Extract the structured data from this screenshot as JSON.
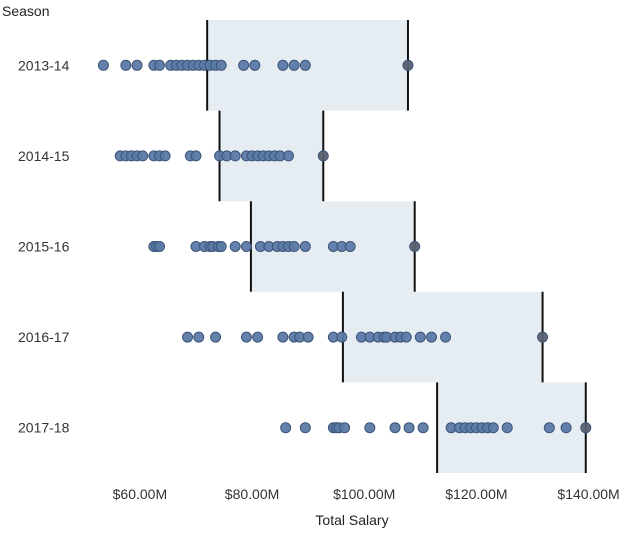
{
  "chart_data": {
    "type": "scatter",
    "title": "",
    "xlabel": "Total Salary",
    "ylabel": "Season",
    "x_unit": "M",
    "xlim": [
      52,
      144
    ],
    "x_ticks": [
      60,
      80,
      100,
      120,
      140
    ],
    "x_tick_labels": [
      "$60.00M",
      "$80.00M",
      "$100.00M",
      "$120.00M",
      "$140.00M"
    ],
    "grid": false,
    "colors": {
      "point_fill": "#5b7aa6",
      "point_stroke": "#3c5479",
      "max_point_fill": "#5a6070",
      "band_fill": "#e6edf2",
      "reference_line": "#111111"
    },
    "categories": [
      "2013-14",
      "2014-15",
      "2015-16",
      "2016-17",
      "2017-18"
    ],
    "series": [
      {
        "category": "2013-14",
        "band": [
          72.0,
          107.8
        ],
        "points": [
          53.5,
          57.5,
          59.5,
          62.5,
          63.5,
          65.5,
          66.5,
          67.5,
          68.5,
          69.5,
          70.5,
          71.5,
          72.5,
          73.5,
          74.5,
          78.5,
          80.5,
          85.5,
          87.5,
          89.5,
          107.8
        ]
      },
      {
        "category": "2014-15",
        "band": [
          74.2,
          92.7
        ],
        "points": [
          56.5,
          57.5,
          58.5,
          59.5,
          60.5,
          62.5,
          63.5,
          64.5,
          69.0,
          70.0,
          74.2,
          75.5,
          77.0,
          79.0,
          80.0,
          81.0,
          82.0,
          83.0,
          84.0,
          85.0,
          86.5,
          92.7
        ]
      },
      {
        "category": "2015-16",
        "band": [
          79.8,
          109.0
        ],
        "points": [
          62.5,
          63.0,
          63.5,
          70.0,
          71.5,
          72.5,
          73.0,
          74.0,
          74.5,
          77.0,
          79.0,
          81.5,
          83.0,
          84.5,
          85.5,
          86.5,
          87.5,
          89.5,
          94.5,
          96.0,
          97.5,
          109.0
        ]
      },
      {
        "category": "2016-17",
        "band": [
          96.2,
          131.8
        ],
        "points": [
          68.5,
          70.5,
          73.5,
          79.0,
          81.0,
          85.5,
          87.5,
          88.5,
          90.0,
          94.5,
          96.0,
          99.5,
          101.0,
          102.5,
          103.5,
          104.0,
          105.5,
          106.5,
          107.5,
          110.0,
          112.0,
          114.5,
          131.8
        ]
      },
      {
        "category": "2017-18",
        "band": [
          113.0,
          139.5
        ],
        "points": [
          86.0,
          89.5,
          94.5,
          95.0,
          95.5,
          96.5,
          101.0,
          105.5,
          108.0,
          110.5,
          115.5,
          117.0,
          118.0,
          119.0,
          120.0,
          121.0,
          122.0,
          123.0,
          125.5,
          133.0,
          136.0,
          139.5
        ]
      }
    ]
  }
}
